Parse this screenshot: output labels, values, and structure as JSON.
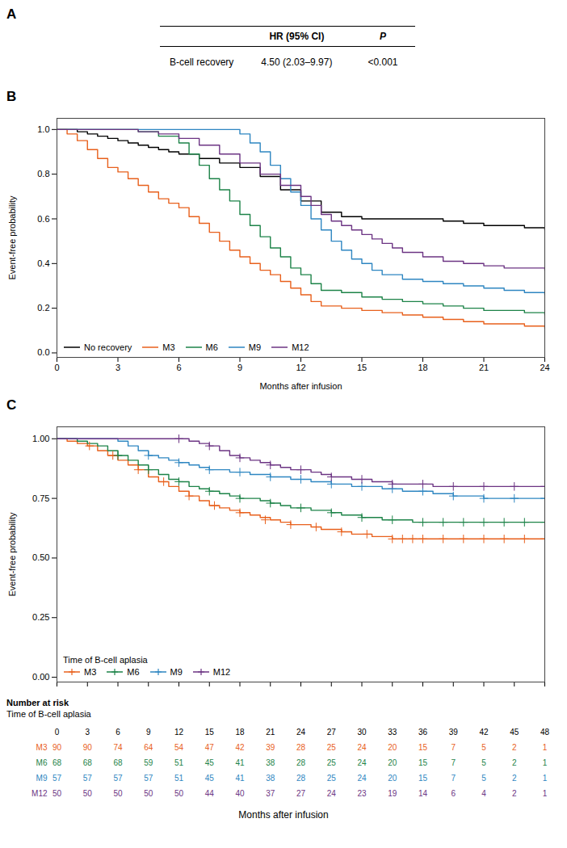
{
  "chart_data": [
    {
      "type": "table",
      "title": "A",
      "header": [
        "HR (95% CI)",
        "P"
      ],
      "rows": [
        {
          "label": "B-cell recovery",
          "values": [
            "4.50 (2.03–9.97)",
            "<0.001"
          ]
        }
      ]
    },
    {
      "type": "step",
      "title": "B",
      "xlabel": "Months after infusion",
      "ylabel": "Event-free probability",
      "xlim": [
        0,
        24
      ],
      "ylim": [
        -0.02,
        1.05
      ],
      "xticks": [
        0,
        3,
        6,
        9,
        12,
        15,
        18,
        21,
        24
      ],
      "yticks": [
        {
          "value": 0,
          "label": "0.0"
        },
        0.2,
        0.4,
        0.6,
        0.8,
        {
          "value": 1,
          "label": "1.0"
        }
      ],
      "grid": false,
      "legend": "lower left",
      "series": [
        {
          "name": "No recovery",
          "color": "#000000",
          "x": [
            0,
            0.5,
            1,
            1.5,
            2,
            2.5,
            3,
            3.5,
            4,
            4.5,
            5,
            5.5,
            6,
            7,
            8,
            9,
            10,
            11,
            12,
            13,
            14,
            15,
            16,
            17,
            18,
            19,
            20,
            21,
            22,
            23,
            24
          ],
          "values": [
            1.0,
            1.0,
            0.99,
            0.98,
            0.97,
            0.96,
            0.95,
            0.94,
            0.93,
            0.92,
            0.91,
            0.9,
            0.89,
            0.87,
            0.85,
            0.83,
            0.79,
            0.73,
            0.68,
            0.63,
            0.61,
            0.6,
            0.6,
            0.6,
            0.6,
            0.59,
            0.58,
            0.57,
            0.57,
            0.56,
            0.55
          ]
        },
        {
          "name": "M3",
          "color": "#E8601C",
          "x": [
            0,
            0.5,
            1,
            1.5,
            2,
            2.5,
            3,
            3.5,
            4,
            4.5,
            5,
            5.5,
            6,
            6.5,
            7,
            7.5,
            8,
            8.5,
            9,
            9.5,
            10,
            10.5,
            11,
            11.5,
            12,
            12.5,
            13,
            14,
            15,
            16,
            17,
            18,
            19,
            20,
            21,
            22,
            23,
            24
          ],
          "values": [
            1.0,
            0.98,
            0.95,
            0.91,
            0.87,
            0.83,
            0.81,
            0.78,
            0.75,
            0.72,
            0.69,
            0.67,
            0.65,
            0.61,
            0.58,
            0.54,
            0.5,
            0.46,
            0.43,
            0.4,
            0.37,
            0.35,
            0.32,
            0.29,
            0.26,
            0.23,
            0.21,
            0.2,
            0.19,
            0.18,
            0.17,
            0.16,
            0.15,
            0.14,
            0.13,
            0.13,
            0.12,
            0.11
          ]
        },
        {
          "name": "M6",
          "color": "#1D8348",
          "x": [
            0,
            1,
            2,
            3,
            4,
            5,
            6,
            6.5,
            7,
            7.5,
            8,
            8.5,
            9,
            9.5,
            10,
            10.5,
            11,
            11.5,
            12,
            12.5,
            13,
            14,
            15,
            16,
            17,
            18,
            19,
            20,
            21,
            22,
            23,
            24
          ],
          "values": [
            1.0,
            1.0,
            1.0,
            1.0,
            0.99,
            0.97,
            0.94,
            0.89,
            0.84,
            0.78,
            0.73,
            0.68,
            0.62,
            0.57,
            0.52,
            0.47,
            0.43,
            0.38,
            0.35,
            0.31,
            0.28,
            0.27,
            0.25,
            0.24,
            0.23,
            0.22,
            0.21,
            0.2,
            0.19,
            0.19,
            0.18,
            0.17
          ]
        },
        {
          "name": "M9",
          "color": "#2E86C1",
          "x": [
            0,
            1,
            2,
            3,
            4,
            5,
            6,
            7,
            8,
            9,
            9.5,
            10,
            10.5,
            11,
            11.5,
            12,
            12.5,
            13,
            13.5,
            14,
            14.5,
            15,
            15.5,
            16,
            17,
            18,
            19,
            20,
            21,
            22,
            23,
            24
          ],
          "values": [
            1.0,
            1.0,
            1.0,
            1.0,
            1.0,
            1.0,
            1.0,
            1.0,
            1.0,
            0.98,
            0.94,
            0.9,
            0.84,
            0.78,
            0.72,
            0.66,
            0.6,
            0.55,
            0.5,
            0.46,
            0.42,
            0.4,
            0.37,
            0.35,
            0.33,
            0.32,
            0.31,
            0.3,
            0.29,
            0.28,
            0.27,
            0.26
          ]
        },
        {
          "name": "M12",
          "color": "#6C3483",
          "x": [
            0,
            1,
            2,
            3,
            4,
            5,
            6,
            7,
            8,
            9,
            10,
            11,
            12,
            12.5,
            13,
            13.5,
            14,
            14.5,
            15,
            15.5,
            16,
            16.5,
            17,
            18,
            19,
            20,
            21,
            22,
            23,
            24
          ],
          "values": [
            1.0,
            1.0,
            1.0,
            1.0,
            0.99,
            0.98,
            0.96,
            0.93,
            0.89,
            0.85,
            0.8,
            0.75,
            0.7,
            0.66,
            0.62,
            0.59,
            0.57,
            0.55,
            0.53,
            0.51,
            0.49,
            0.47,
            0.45,
            0.43,
            0.41,
            0.4,
            0.39,
            0.38,
            0.38,
            0.37
          ]
        }
      ]
    },
    {
      "type": "step",
      "title": "C",
      "xlabel": "Months after infusion",
      "ylabel": "Event-free probability",
      "xlim": [
        0,
        48
      ],
      "ylim": [
        -0.02,
        1.05
      ],
      "xticks": [
        0,
        3,
        6,
        9,
        12,
        15,
        18,
        21,
        24,
        27,
        30,
        33,
        36,
        39,
        42,
        45,
        48
      ],
      "yticks": [
        {
          "value": 0,
          "label": "0.00"
        },
        0.25,
        {
          "value": 0.5,
          "label": "0.50"
        },
        0.75,
        {
          "value": 1,
          "label": "1.00"
        }
      ],
      "tick_labels": "y",
      "grid": false,
      "legend": "lower left",
      "legend_title": "Time of B-cell aplasia",
      "marker": "plus",
      "series": [
        {
          "name": "M3",
          "color": "#E8601C",
          "x": [
            0,
            1,
            2,
            3,
            4,
            5,
            6,
            7,
            8,
            9,
            10,
            11,
            12,
            13,
            14,
            15,
            16,
            17,
            18,
            19,
            20,
            21,
            22,
            23,
            24,
            25,
            26,
            27,
            28,
            29,
            30,
            31,
            32,
            33,
            34,
            35,
            36,
            37,
            38,
            39,
            40,
            41,
            42,
            43,
            44,
            45,
            46,
            47,
            48
          ],
          "values": [
            1.0,
            0.99,
            0.98,
            0.97,
            0.95,
            0.93,
            0.91,
            0.89,
            0.87,
            0.84,
            0.82,
            0.8,
            0.78,
            0.76,
            0.74,
            0.72,
            0.71,
            0.7,
            0.69,
            0.68,
            0.67,
            0.66,
            0.65,
            0.64,
            0.64,
            0.63,
            0.62,
            0.62,
            0.61,
            0.6,
            0.6,
            0.59,
            0.59,
            0.58,
            0.58,
            0.58,
            0.58,
            0.58,
            0.58,
            0.58,
            0.58,
            0.58,
            0.58,
            0.58,
            0.58,
            0.58,
            0.58,
            0.58,
            0.58
          ],
          "censor_x": [
            3.2,
            5.5,
            8,
            10.5,
            13,
            15.5,
            18,
            20.5,
            23,
            25.5,
            28,
            30.5,
            33,
            34,
            35,
            36,
            38,
            40,
            42,
            44,
            46,
            48
          ],
          "censor_y": [
            0.97,
            0.93,
            0.87,
            0.82,
            0.76,
            0.72,
            0.69,
            0.66,
            0.64,
            0.63,
            0.61,
            0.6,
            0.58,
            0.58,
            0.58,
            0.58,
            0.58,
            0.58,
            0.58,
            0.58,
            0.58,
            0.58
          ]
        },
        {
          "name": "M6",
          "color": "#1D8348",
          "x": [
            0,
            1,
            2,
            3,
            4,
            5,
            6,
            7,
            8,
            9,
            10,
            11,
            12,
            13,
            14,
            15,
            16,
            17,
            18,
            19,
            20,
            21,
            22,
            23,
            24,
            25,
            26,
            27,
            28,
            29,
            30,
            31,
            32,
            33,
            34,
            35,
            36,
            37,
            38,
            39,
            40,
            41,
            42,
            43,
            44,
            45,
            46,
            47,
            48
          ],
          "values": [
            1.0,
            1.0,
            0.99,
            0.98,
            0.97,
            0.95,
            0.93,
            0.91,
            0.89,
            0.87,
            0.85,
            0.83,
            0.82,
            0.8,
            0.79,
            0.78,
            0.77,
            0.76,
            0.75,
            0.75,
            0.74,
            0.73,
            0.72,
            0.71,
            0.71,
            0.7,
            0.7,
            0.69,
            0.68,
            0.68,
            0.67,
            0.67,
            0.66,
            0.66,
            0.66,
            0.65,
            0.65,
            0.65,
            0.65,
            0.65,
            0.65,
            0.65,
            0.65,
            0.65,
            0.65,
            0.65,
            0.65,
            0.65,
            0.65
          ],
          "censor_x": [
            6,
            9,
            12,
            15,
            18,
            21,
            24,
            27,
            30,
            33,
            36,
            38,
            40,
            42,
            44,
            46,
            48
          ],
          "censor_y": [
            0.93,
            0.87,
            0.82,
            0.78,
            0.75,
            0.73,
            0.71,
            0.69,
            0.67,
            0.66,
            0.65,
            0.65,
            0.65,
            0.65,
            0.65,
            0.65,
            0.65
          ]
        },
        {
          "name": "M9",
          "color": "#2E86C1",
          "x": [
            0,
            1,
            2,
            3,
            4,
            5,
            6,
            7,
            8,
            9,
            10,
            11,
            12,
            13,
            14,
            15,
            16,
            17,
            18,
            19,
            20,
            21,
            22,
            23,
            24,
            25,
            26,
            27,
            28,
            29,
            30,
            31,
            32,
            33,
            34,
            35,
            36,
            37,
            38,
            39,
            40,
            41,
            42,
            43,
            44,
            45,
            46,
            47,
            48
          ],
          "values": [
            1.0,
            1.0,
            1.0,
            1.0,
            1.0,
            1.0,
            0.99,
            0.97,
            0.95,
            0.93,
            0.92,
            0.91,
            0.9,
            0.89,
            0.88,
            0.87,
            0.87,
            0.86,
            0.86,
            0.85,
            0.85,
            0.84,
            0.84,
            0.83,
            0.83,
            0.82,
            0.82,
            0.81,
            0.81,
            0.8,
            0.8,
            0.8,
            0.79,
            0.79,
            0.78,
            0.78,
            0.78,
            0.77,
            0.77,
            0.76,
            0.76,
            0.76,
            0.75,
            0.75,
            0.75,
            0.75,
            0.75,
            0.75,
            0.75
          ],
          "censor_x": [
            9,
            12,
            15,
            18,
            21,
            24,
            27,
            30,
            33,
            36,
            39,
            42,
            45,
            48
          ],
          "censor_y": [
            0.93,
            0.9,
            0.87,
            0.86,
            0.84,
            0.83,
            0.81,
            0.8,
            0.79,
            0.78,
            0.76,
            0.75,
            0.75,
            0.75
          ]
        },
        {
          "name": "M12",
          "color": "#6C3483",
          "x": [
            0,
            1,
            2,
            3,
            4,
            5,
            6,
            7,
            8,
            9,
            10,
            11,
            12,
            13,
            14,
            15,
            16,
            17,
            18,
            19,
            20,
            21,
            22,
            23,
            24,
            25,
            26,
            27,
            28,
            29,
            30,
            31,
            32,
            33,
            34,
            35,
            36,
            37,
            38,
            39,
            40,
            41,
            42,
            43,
            44,
            45,
            46,
            47,
            48
          ],
          "values": [
            1.0,
            1.0,
            1.0,
            1.0,
            1.0,
            1.0,
            1.0,
            1.0,
            1.0,
            1.0,
            1.0,
            1.0,
            1.0,
            0.99,
            0.98,
            0.97,
            0.95,
            0.93,
            0.92,
            0.91,
            0.9,
            0.89,
            0.88,
            0.87,
            0.87,
            0.86,
            0.85,
            0.84,
            0.84,
            0.83,
            0.83,
            0.82,
            0.82,
            0.81,
            0.81,
            0.81,
            0.81,
            0.8,
            0.8,
            0.8,
            0.8,
            0.8,
            0.8,
            0.8,
            0.8,
            0.8,
            0.8,
            0.8,
            0.8
          ],
          "censor_x": [
            12,
            15,
            18,
            21,
            24,
            27,
            30,
            33,
            36,
            39,
            42,
            45,
            48
          ],
          "censor_y": [
            1.0,
            0.97,
            0.92,
            0.89,
            0.87,
            0.84,
            0.83,
            0.81,
            0.81,
            0.8,
            0.8,
            0.8,
            0.8
          ]
        }
      ],
      "risk_table": {
        "title": "Number at risk",
        "subtitle": "Time of B-cell aplasia",
        "times": [
          0,
          3,
          6,
          9,
          12,
          15,
          18,
          21,
          24,
          27,
          30,
          33,
          36,
          39,
          42,
          45,
          48
        ],
        "series": [
          {
            "name": "M3",
            "color": "#E8601C",
            "values": [
              90,
              90,
              74,
              64,
              54,
              47,
              42,
              39,
              28,
              25,
              24,
              20,
              15,
              7,
              5,
              2,
              1
            ]
          },
          {
            "name": "M6",
            "color": "#1D8348",
            "values": [
              68,
              68,
              68,
              59,
              51,
              45,
              41,
              38,
              28,
              25,
              24,
              20,
              15,
              7,
              5,
              2,
              1
            ]
          },
          {
            "name": "M9",
            "color": "#2E86C1",
            "values": [
              57,
              57,
              57,
              57,
              51,
              45,
              41,
              38,
              28,
              25,
              24,
              20,
              15,
              7,
              5,
              2,
              1
            ]
          },
          {
            "name": "M12",
            "color": "#6C3483",
            "values": [
              50,
              50,
              50,
              50,
              50,
              44,
              40,
              37,
              27,
              24,
              23,
              19,
              14,
              6,
              4,
              2,
              1
            ]
          }
        ]
      }
    }
  ]
}
